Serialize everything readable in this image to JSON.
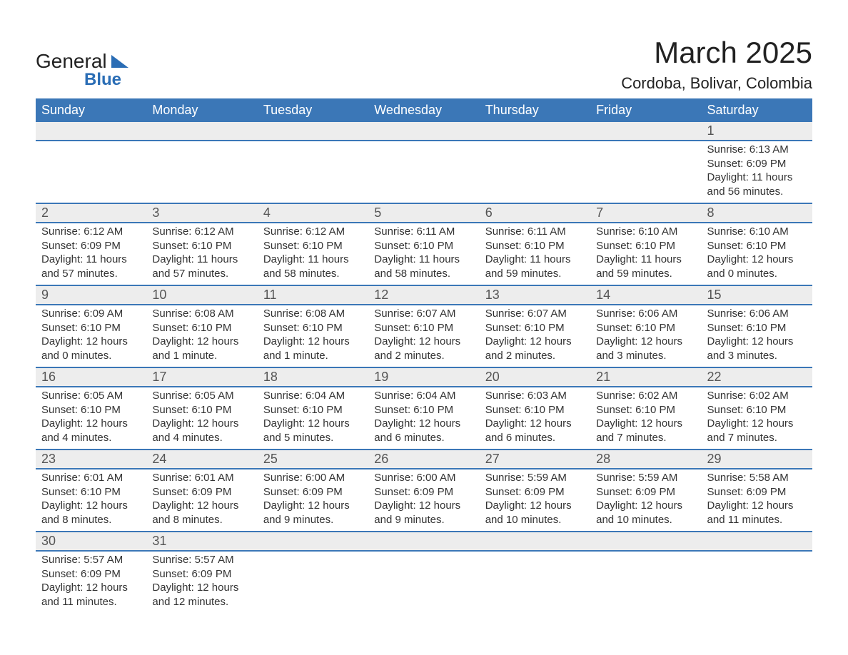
{
  "logo": {
    "text1": "General",
    "text2": "Blue"
  },
  "title": "March 2025",
  "subtitle": "Cordoba, Bolivar, Colombia",
  "colors": {
    "header_bg": "#3b77b7",
    "header_fg": "#ffffff",
    "daynum_bg": "#ededed",
    "row_divider": "#3b77b7",
    "logo_blue": "#2a6db5"
  },
  "days_of_week": [
    "Sunday",
    "Monday",
    "Tuesday",
    "Wednesday",
    "Thursday",
    "Friday",
    "Saturday"
  ],
  "weeks": [
    [
      null,
      null,
      null,
      null,
      null,
      null,
      {
        "n": "1",
        "sunrise": "6:13 AM",
        "sunset": "6:09 PM",
        "daylight": "11 hours and 56 minutes."
      }
    ],
    [
      {
        "n": "2",
        "sunrise": "6:12 AM",
        "sunset": "6:09 PM",
        "daylight": "11 hours and 57 minutes."
      },
      {
        "n": "3",
        "sunrise": "6:12 AM",
        "sunset": "6:10 PM",
        "daylight": "11 hours and 57 minutes."
      },
      {
        "n": "4",
        "sunrise": "6:12 AM",
        "sunset": "6:10 PM",
        "daylight": "11 hours and 58 minutes."
      },
      {
        "n": "5",
        "sunrise": "6:11 AM",
        "sunset": "6:10 PM",
        "daylight": "11 hours and 58 minutes."
      },
      {
        "n": "6",
        "sunrise": "6:11 AM",
        "sunset": "6:10 PM",
        "daylight": "11 hours and 59 minutes."
      },
      {
        "n": "7",
        "sunrise": "6:10 AM",
        "sunset": "6:10 PM",
        "daylight": "11 hours and 59 minutes."
      },
      {
        "n": "8",
        "sunrise": "6:10 AM",
        "sunset": "6:10 PM",
        "daylight": "12 hours and 0 minutes."
      }
    ],
    [
      {
        "n": "9",
        "sunrise": "6:09 AM",
        "sunset": "6:10 PM",
        "daylight": "12 hours and 0 minutes."
      },
      {
        "n": "10",
        "sunrise": "6:08 AM",
        "sunset": "6:10 PM",
        "daylight": "12 hours and 1 minute."
      },
      {
        "n": "11",
        "sunrise": "6:08 AM",
        "sunset": "6:10 PM",
        "daylight": "12 hours and 1 minute."
      },
      {
        "n": "12",
        "sunrise": "6:07 AM",
        "sunset": "6:10 PM",
        "daylight": "12 hours and 2 minutes."
      },
      {
        "n": "13",
        "sunrise": "6:07 AM",
        "sunset": "6:10 PM",
        "daylight": "12 hours and 2 minutes."
      },
      {
        "n": "14",
        "sunrise": "6:06 AM",
        "sunset": "6:10 PM",
        "daylight": "12 hours and 3 minutes."
      },
      {
        "n": "15",
        "sunrise": "6:06 AM",
        "sunset": "6:10 PM",
        "daylight": "12 hours and 3 minutes."
      }
    ],
    [
      {
        "n": "16",
        "sunrise": "6:05 AM",
        "sunset": "6:10 PM",
        "daylight": "12 hours and 4 minutes."
      },
      {
        "n": "17",
        "sunrise": "6:05 AM",
        "sunset": "6:10 PM",
        "daylight": "12 hours and 4 minutes."
      },
      {
        "n": "18",
        "sunrise": "6:04 AM",
        "sunset": "6:10 PM",
        "daylight": "12 hours and 5 minutes."
      },
      {
        "n": "19",
        "sunrise": "6:04 AM",
        "sunset": "6:10 PM",
        "daylight": "12 hours and 6 minutes."
      },
      {
        "n": "20",
        "sunrise": "6:03 AM",
        "sunset": "6:10 PM",
        "daylight": "12 hours and 6 minutes."
      },
      {
        "n": "21",
        "sunrise": "6:02 AM",
        "sunset": "6:10 PM",
        "daylight": "12 hours and 7 minutes."
      },
      {
        "n": "22",
        "sunrise": "6:02 AM",
        "sunset": "6:10 PM",
        "daylight": "12 hours and 7 minutes."
      }
    ],
    [
      {
        "n": "23",
        "sunrise": "6:01 AM",
        "sunset": "6:10 PM",
        "daylight": "12 hours and 8 minutes."
      },
      {
        "n": "24",
        "sunrise": "6:01 AM",
        "sunset": "6:09 PM",
        "daylight": "12 hours and 8 minutes."
      },
      {
        "n": "25",
        "sunrise": "6:00 AM",
        "sunset": "6:09 PM",
        "daylight": "12 hours and 9 minutes."
      },
      {
        "n": "26",
        "sunrise": "6:00 AM",
        "sunset": "6:09 PM",
        "daylight": "12 hours and 9 minutes."
      },
      {
        "n": "27",
        "sunrise": "5:59 AM",
        "sunset": "6:09 PM",
        "daylight": "12 hours and 10 minutes."
      },
      {
        "n": "28",
        "sunrise": "5:59 AM",
        "sunset": "6:09 PM",
        "daylight": "12 hours and 10 minutes."
      },
      {
        "n": "29",
        "sunrise": "5:58 AM",
        "sunset": "6:09 PM",
        "daylight": "12 hours and 11 minutes."
      }
    ],
    [
      {
        "n": "30",
        "sunrise": "5:57 AM",
        "sunset": "6:09 PM",
        "daylight": "12 hours and 11 minutes."
      },
      {
        "n": "31",
        "sunrise": "5:57 AM",
        "sunset": "6:09 PM",
        "daylight": "12 hours and 12 minutes."
      },
      null,
      null,
      null,
      null,
      null
    ]
  ],
  "labels": {
    "sunrise_prefix": "Sunrise: ",
    "sunset_prefix": "Sunset: ",
    "daylight_prefix": "Daylight: "
  }
}
